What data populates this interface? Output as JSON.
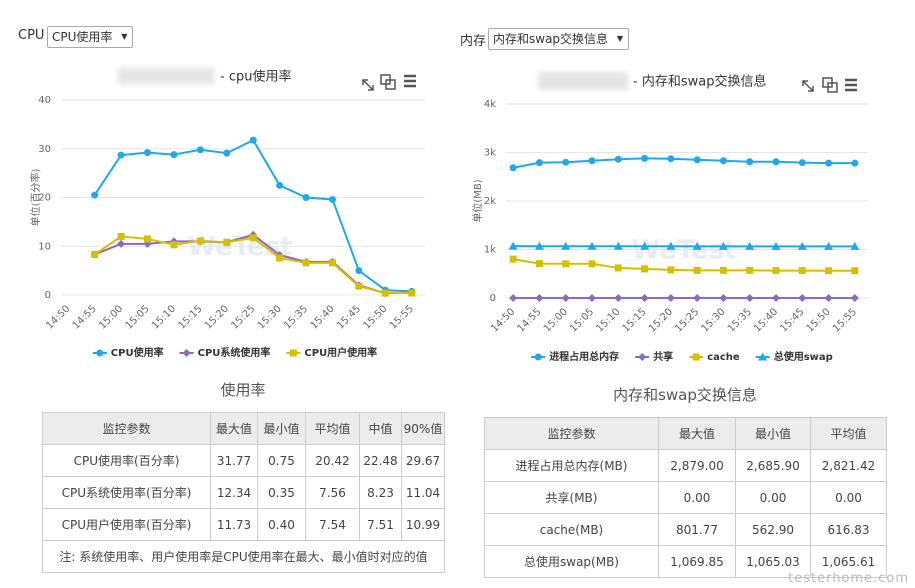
{
  "controls": [
    {
      "label": "CPU",
      "select": "CPU使用率"
    },
    {
      "label": "内存",
      "select": "内存和swap交换信息"
    }
  ],
  "chart_data": [
    {
      "type": "line",
      "title": "- cpu使用率",
      "y_label": "单位(百分率)",
      "watermark": "WeTest",
      "categories": [
        "14:50",
        "14:55",
        "15:00",
        "15:05",
        "15:10",
        "15:15",
        "15:20",
        "15:25",
        "15:30",
        "15:35",
        "15:40",
        "15:45",
        "15:50",
        "15:55"
      ],
      "series": [
        {
          "name": "CPU使用率",
          "color": "#1fa9ec",
          "marker": "circle",
          "values": [
            null,
            20.5,
            28.7,
            29.2,
            28.8,
            29.8,
            29.1,
            31.77,
            22.5,
            20.0,
            19.6,
            5.0,
            1.0,
            0.75
          ]
        },
        {
          "name": "CPU系统使用率",
          "color": "#8b69c6",
          "marker": "diamond",
          "values": [
            null,
            8.3,
            10.5,
            10.5,
            11.0,
            11.0,
            10.8,
            12.34,
            8.2,
            6.8,
            6.8,
            2.0,
            0.35,
            0.5
          ]
        },
        {
          "name": "CPU用户使用率",
          "color": "#d4c000",
          "marker": "square",
          "values": [
            null,
            8.3,
            12.0,
            11.5,
            10.3,
            11.1,
            10.8,
            11.73,
            7.6,
            6.6,
            6.6,
            1.8,
            0.4,
            0.4
          ]
        }
      ],
      "ylim": [
        0,
        40
      ],
      "yticks": [
        0,
        10,
        20,
        30,
        40
      ],
      "grid": true,
      "legend": "bottom"
    },
    {
      "type": "line",
      "title": "- 内存和swap交换信息",
      "y_label": "单位(MB)",
      "watermark": "WeTest",
      "categories": [
        "14:50",
        "14:55",
        "15:00",
        "15:05",
        "15:10",
        "15:15",
        "15:20",
        "15:25",
        "15:30",
        "15:35",
        "15:40",
        "15:45",
        "15:50",
        "15:55"
      ],
      "series": [
        {
          "name": "进程占用总内存",
          "color": "#1fa9ec",
          "marker": "circle",
          "values": [
            2685.9,
            2790,
            2800,
            2830,
            2860,
            2879,
            2870,
            2850,
            2830,
            2810,
            2810,
            2790,
            2780,
            2780
          ]
        },
        {
          "name": "共享",
          "color": "#8b69c6",
          "marker": "diamond",
          "values": [
            0,
            0,
            0,
            0,
            0,
            0,
            0,
            0,
            0,
            0,
            0,
            0,
            0,
            0
          ]
        },
        {
          "name": "cache",
          "color": "#d4c000",
          "marker": "square",
          "values": [
            801.77,
            710,
            705,
            705,
            620,
            600,
            580,
            570,
            570,
            570,
            565,
            565,
            562.9,
            562.9
          ]
        },
        {
          "name": "总使用swap",
          "color": "#1fa9ec",
          "marker": "triangle",
          "values": [
            1069.85,
            1066,
            1066,
            1066,
            1066,
            1066,
            1066,
            1065.5,
            1065.5,
            1065.5,
            1065.5,
            1065.5,
            1065.5,
            1065.03
          ]
        }
      ],
      "ylim": [
        0,
        4000
      ],
      "yticks": [
        0,
        {
          "value": 1000,
          "label": "1k"
        },
        {
          "value": 2000,
          "label": "2k"
        },
        {
          "value": 3000,
          "label": "3k"
        },
        {
          "value": 4000,
          "label": "4k"
        }
      ],
      "grid": true,
      "legend": "bottom"
    }
  ],
  "tables": [
    {
      "title": "使用率",
      "header": [
        "监控参数",
        "最大值",
        "最小值",
        "平均值",
        "中值",
        "90%值"
      ],
      "rows": [
        [
          "CPU使用率(百分率)",
          "31.77",
          "0.75",
          "20.42",
          "22.48",
          "29.67"
        ],
        [
          "CPU系统使用率(百分率)",
          "12.34",
          "0.35",
          "7.56",
          "8.23",
          "11.04"
        ],
        [
          "CPU用户使用率(百分率)",
          "11.73",
          "0.40",
          "7.54",
          "7.51",
          "10.99"
        ]
      ],
      "note": "注: 系统使用率、用户使用率是CPU使用率在最大、最小值时对应的值"
    },
    {
      "title": "内存和swap交换信息",
      "header": [
        "监控参数",
        "最大值",
        "最小值",
        "平均值"
      ],
      "rows": [
        [
          "进程占用总内存(MB)",
          "2,879.00",
          "2,685.90",
          "2,821.42"
        ],
        [
          "共享(MB)",
          "0.00",
          "0.00",
          "0.00"
        ],
        [
          "cache(MB)",
          "801.77",
          "562.90",
          "616.83"
        ],
        [
          "总使用swap(MB)",
          "1,069.85",
          "1,065.03",
          "1,065.61"
        ]
      ]
    }
  ],
  "watermark": "testerhome.com"
}
